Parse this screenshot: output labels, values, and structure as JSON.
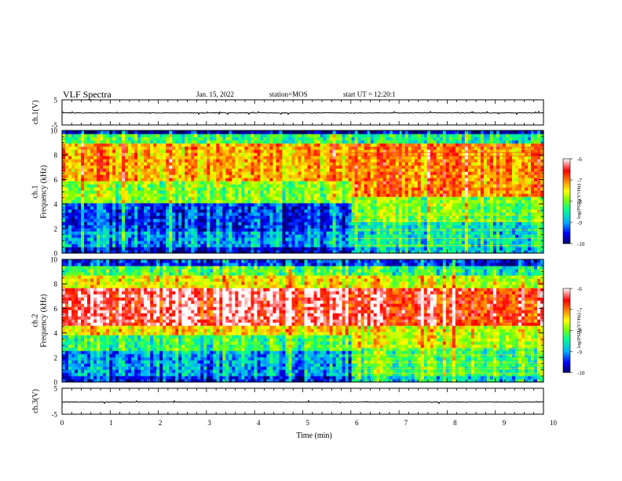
{
  "header": {
    "title": "VLF Spectra",
    "date": "Jan. 15, 2022",
    "station": "station=MOS",
    "start": "start UT = 12:20:1"
  },
  "chart_data": [
    {
      "type": "line",
      "panel": "ch1-waveform",
      "ylabel": "ch.1(V)",
      "ylim": [
        -5,
        5
      ],
      "yticks": [
        "5",
        "-5"
      ],
      "xlim": [
        0,
        10
      ],
      "series": [
        {
          "values_description": "near-zero flat trace with small spikes",
          "level": -0.2
        }
      ]
    },
    {
      "type": "heatmap",
      "panel": "ch1-spectrogram",
      "ylabel": "ch.1\nFrequency (kHz)",
      "ylim": [
        0,
        10
      ],
      "yticks": [
        "0",
        "2",
        "4",
        "6",
        "8",
        "10"
      ],
      "xlim": [
        0,
        10
      ],
      "colorbar": {
        "label": "log(PSD)(V²/Hz)",
        "ticks": [
          "-6",
          "-7",
          "-8",
          "-9",
          "-10"
        ],
        "range": [
          -10,
          -6
        ]
      },
      "regime_change_min": 6.0,
      "bands_before": [
        [
          0,
          0.6,
          -9.7
        ],
        [
          0.6,
          1.8,
          -9.0
        ],
        [
          1.8,
          4.0,
          -9.4
        ],
        [
          4.0,
          6.0,
          -8.0
        ],
        [
          6.0,
          9.0,
          -7.2
        ],
        [
          9.0,
          9.8,
          -8.3
        ],
        [
          9.8,
          10,
          -9.8
        ]
      ],
      "bands_after": [
        [
          0,
          0.6,
          -8.8
        ],
        [
          0.6,
          2.5,
          -8.6
        ],
        [
          2.5,
          4.5,
          -8.0
        ],
        [
          4.5,
          8.9,
          -7.0
        ],
        [
          8.9,
          9.8,
          -8.5
        ],
        [
          9.8,
          10,
          -9.6
        ]
      ]
    },
    {
      "type": "heatmap",
      "panel": "ch2-spectrogram",
      "ylabel": "ch.2\nFrequency (kHz)",
      "ylim": [
        0,
        10
      ],
      "yticks": [
        "0",
        "2",
        "4",
        "6",
        "8",
        "10"
      ],
      "xlim": [
        0,
        10
      ],
      "colorbar": {
        "label": "log(PSD)(V²/Hz)",
        "ticks": [
          "-6",
          "-7",
          "-8",
          "-9",
          "-10"
        ],
        "range": [
          -10,
          -6
        ]
      },
      "regime_change_min": 6.0,
      "bands_before": [
        [
          0,
          0.6,
          -9.6
        ],
        [
          0.6,
          2.5,
          -9.1
        ],
        [
          2.5,
          3.8,
          -8.4
        ],
        [
          3.8,
          4.5,
          -7.5
        ],
        [
          4.5,
          7.8,
          -6.4
        ],
        [
          7.8,
          8.8,
          -7.6
        ],
        [
          8.8,
          9.6,
          -8.3
        ],
        [
          9.6,
          10,
          -9.5
        ]
      ],
      "bands_after": [
        [
          0,
          0.6,
          -8.6
        ],
        [
          0.6,
          2.8,
          -8.2
        ],
        [
          2.8,
          4.5,
          -7.6
        ],
        [
          4.5,
          7.8,
          -6.5
        ],
        [
          7.8,
          8.8,
          -7.6
        ],
        [
          8.8,
          9.6,
          -8.4
        ],
        [
          9.6,
          10,
          -9.4
        ]
      ]
    },
    {
      "type": "line",
      "panel": "ch3-waveform",
      "ylabel": "ch.3(V)",
      "ylim": [
        -5,
        5
      ],
      "yticks": [
        "5",
        "-5"
      ],
      "xlim": [
        0,
        10
      ],
      "xlabel": "Time (min)",
      "xticks": [
        "0",
        "1",
        "2",
        "3",
        "4",
        "5",
        "6",
        "7",
        "8",
        "9",
        "10"
      ],
      "series": [
        {
          "values_description": "near-zero flat trace",
          "level": -0.3
        }
      ]
    }
  ],
  "colors": {
    "colormap": [
      "#000066",
      "#0000ff",
      "#00b0ff",
      "#00ff90",
      "#80ff00",
      "#ffff00",
      "#ff8000",
      "#ff0000",
      "#ffffff"
    ],
    "axis": "#000000",
    "trace": "#000000"
  }
}
